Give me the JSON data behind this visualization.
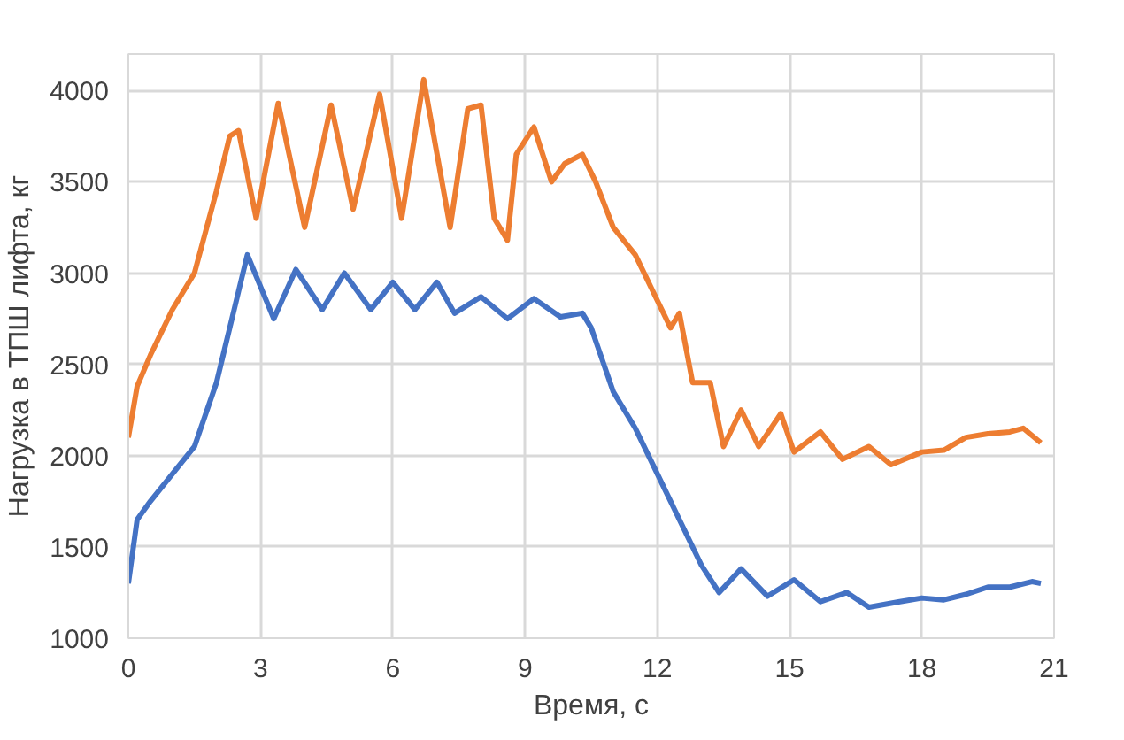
{
  "chart_data": {
    "type": "line",
    "xlabel": "Время, с",
    "ylabel": "Нагрузка в ТПШ лифта, кг",
    "xlim": [
      0,
      21
    ],
    "xticks": [
      0,
      3,
      6,
      9,
      12,
      15,
      18,
      21
    ],
    "ylim": [
      1000,
      4200
    ],
    "yticks": [
      1000,
      1500,
      2000,
      2500,
      3000,
      3500,
      4000
    ],
    "grid": true,
    "marker": "none",
    "line_style": "solid",
    "series": [
      {
        "color": "#4472c4",
        "x": [
          0,
          0.2,
          0.5,
          1,
          1.5,
          2,
          2.5,
          2.7,
          3.3,
          3.8,
          4.4,
          4.9,
          5.5,
          6,
          6.5,
          7,
          7.4,
          8,
          8.6,
          9.2,
          9.8,
          10.3,
          10.5,
          11,
          11.5,
          12,
          12.5,
          13,
          13.4,
          13.9,
          14.5,
          15.1,
          15.7,
          16.3,
          16.8,
          17.5,
          18,
          18.5,
          19,
          19.5,
          20,
          20.5,
          20.7
        ],
        "values": [
          1300,
          1650,
          1750,
          1900,
          2050,
          2400,
          2900,
          3100,
          2750,
          3020,
          2800,
          3000,
          2800,
          2950,
          2800,
          2950,
          2780,
          2870,
          2750,
          2860,
          2760,
          2780,
          2700,
          2350,
          2150,
          1900,
          1650,
          1400,
          1250,
          1380,
          1230,
          1320,
          1200,
          1250,
          1170,
          1200,
          1220,
          1210,
          1240,
          1280,
          1280,
          1310,
          1300
        ]
      },
      {
        "color": "#ed7d31",
        "x": [
          0,
          0.2,
          0.5,
          1,
          1.5,
          2,
          2.3,
          2.5,
          2.9,
          3.4,
          4,
          4.6,
          5.1,
          5.7,
          6.2,
          6.7,
          7.3,
          7.7,
          8,
          8.3,
          8.6,
          8.8,
          9.2,
          9.6,
          9.9,
          10.3,
          10.6,
          11,
          11.5,
          12,
          12.3,
          12.5,
          12.8,
          13.2,
          13.5,
          13.9,
          14.3,
          14.8,
          15.1,
          15.7,
          16.2,
          16.8,
          17.3,
          18,
          18.5,
          19,
          19.5,
          20,
          20.3,
          20.7
        ],
        "values": [
          2100,
          2380,
          2550,
          2800,
          3000,
          3450,
          3750,
          3780,
          3300,
          3930,
          3250,
          3920,
          3350,
          3980,
          3300,
          4060,
          3250,
          3900,
          3920,
          3300,
          3180,
          3650,
          3800,
          3500,
          3600,
          3650,
          3500,
          3250,
          3100,
          2850,
          2700,
          2780,
          2400,
          2400,
          2050,
          2250,
          2050,
          2230,
          2020,
          2130,
          1980,
          2050,
          1950,
          2020,
          2030,
          2100,
          2120,
          2130,
          2150,
          2070
        ]
      }
    ]
  }
}
